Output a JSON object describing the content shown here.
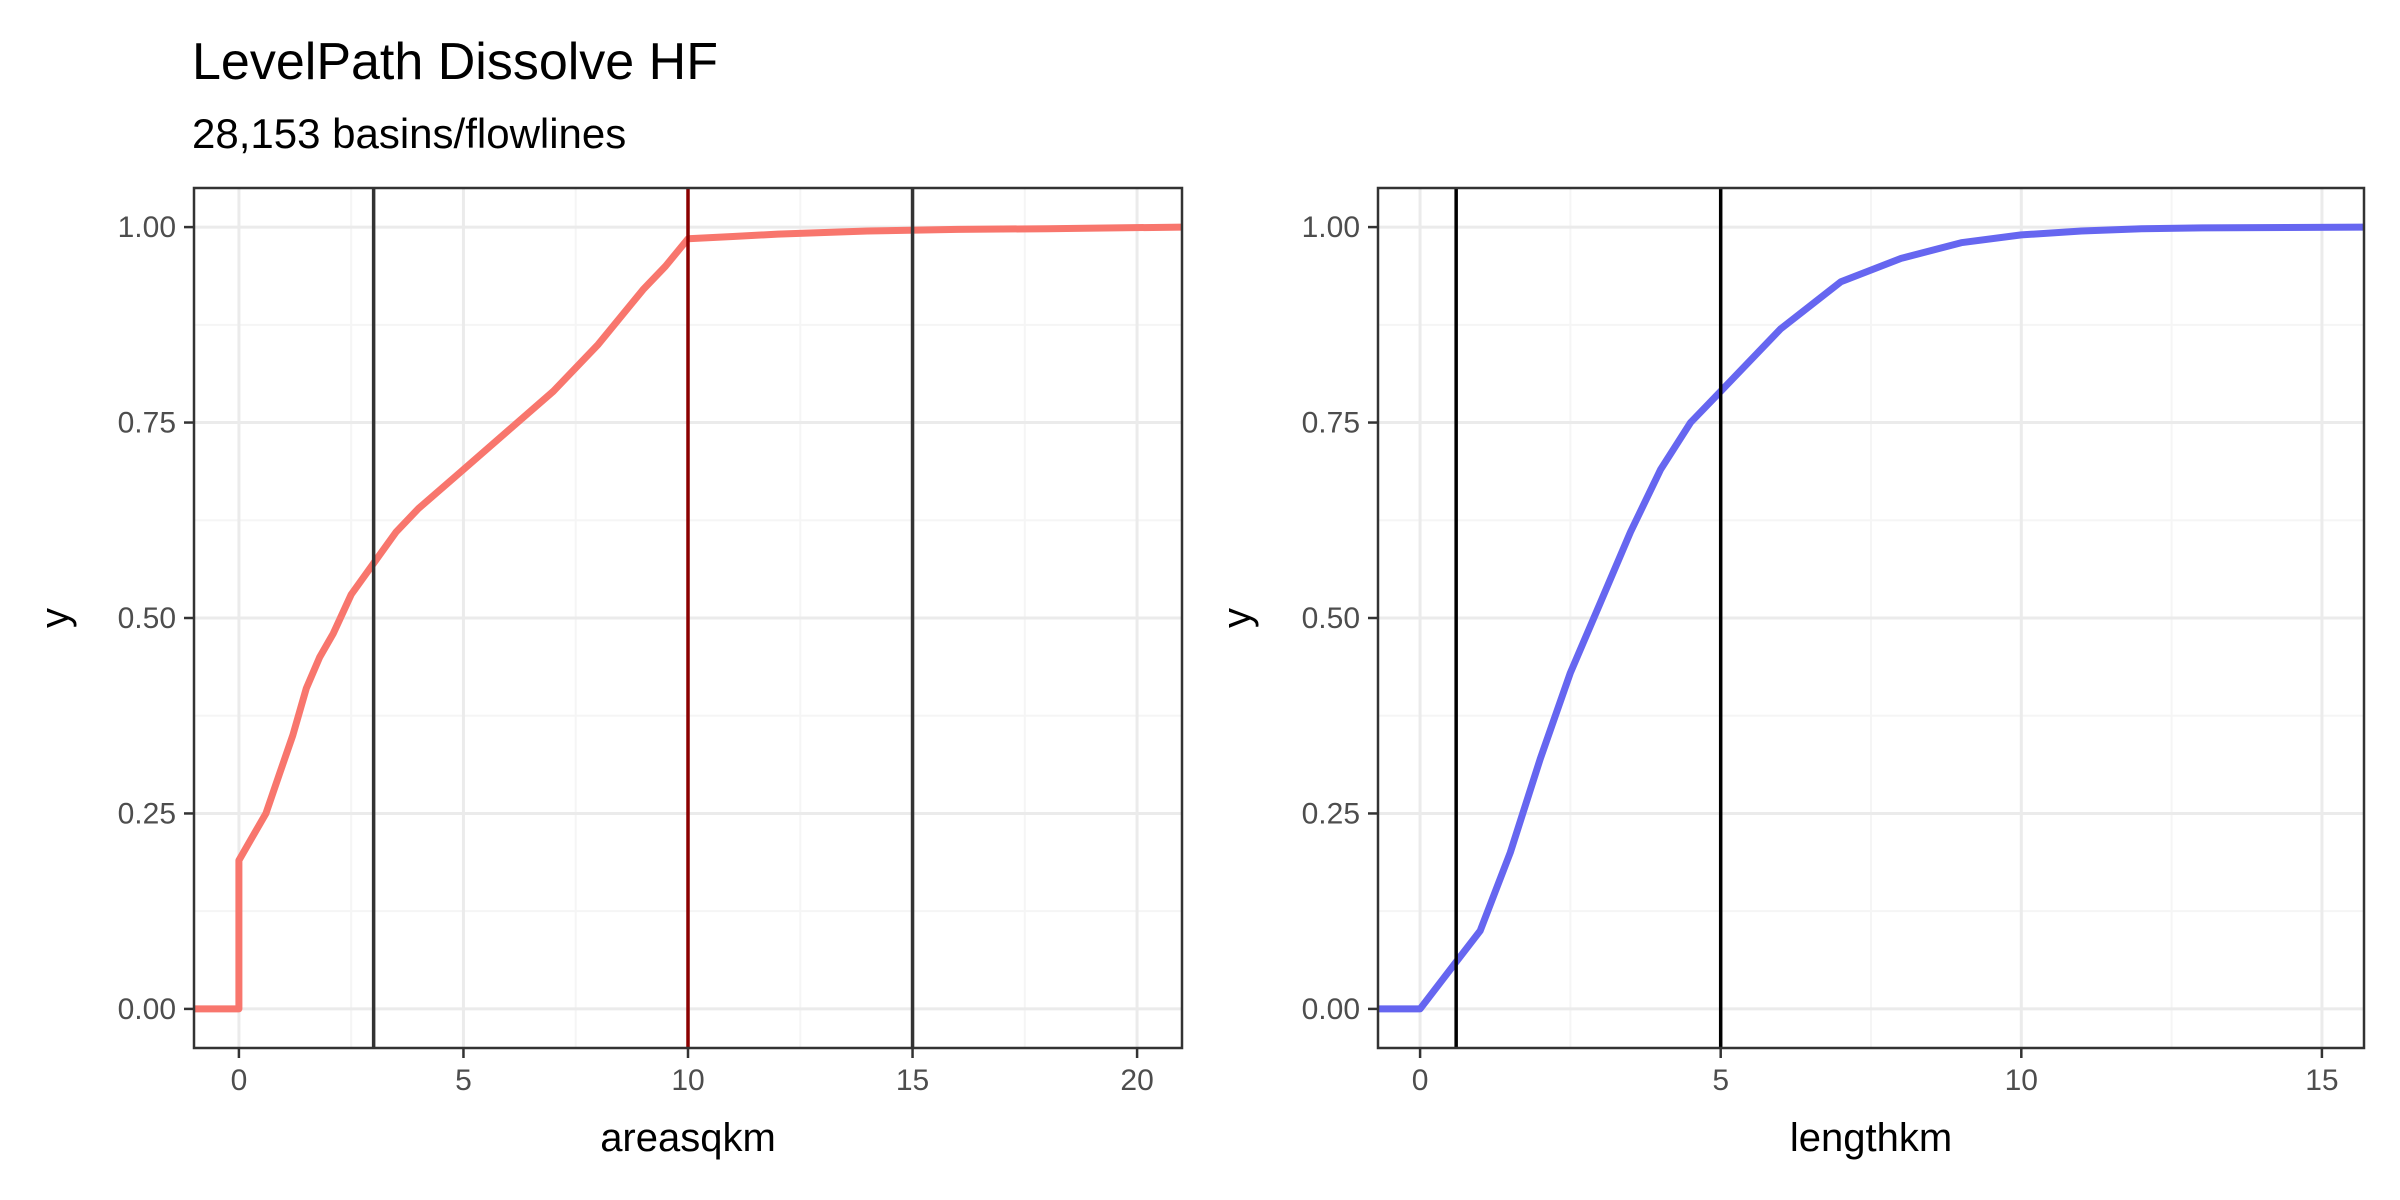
{
  "title": "LevelPath Dissolve HF",
  "subtitle": "28,153 basins/flowlines",
  "colors": {
    "area_curve": "#F8766D",
    "length_curve": "#6666F0",
    "ref_line": "#333333",
    "highlight_line": "#8B0000",
    "panel_border": "#333333",
    "grid_major": "#EBEBEB",
    "grid_minor": "#F5F5F5"
  },
  "chart_data": [
    {
      "type": "line",
      "subtype": "ecdf",
      "xlabel": "areasqkm",
      "ylabel": "y",
      "xlim": [
        -1,
        21
      ],
      "ylim": [
        -0.05,
        1.05
      ],
      "x_ticks": [
        0,
        5,
        10,
        15,
        20
      ],
      "x_tick_labels": [
        "0",
        "5",
        "10",
        "15",
        "20"
      ],
      "y_ticks": [
        0,
        0.25,
        0.5,
        0.75,
        1
      ],
      "y_tick_labels": [
        "0.00",
        "0.25",
        "0.50",
        "0.75",
        "1.00"
      ],
      "grid": true,
      "series": [
        {
          "color": "#F8766D",
          "x": [
            -1,
            0,
            0,
            0.3,
            0.6,
            0.9,
            1.2,
            1.5,
            1.8,
            2.1,
            2.5,
            3.0,
            3.5,
            4.0,
            5.0,
            6.0,
            7.0,
            8.0,
            9.0,
            9.5,
            10.0,
            11.0,
            12.0,
            14.0,
            16.0,
            18.0,
            21.0
          ],
          "y": [
            0,
            0,
            0.19,
            0.22,
            0.25,
            0.3,
            0.35,
            0.41,
            0.45,
            0.48,
            0.53,
            0.57,
            0.61,
            0.64,
            0.69,
            0.74,
            0.79,
            0.85,
            0.92,
            0.95,
            0.985,
            0.988,
            0.991,
            0.995,
            0.997,
            0.998,
            1.0
          ]
        }
      ],
      "vlines": [
        {
          "x": 3,
          "color": "#333333"
        },
        {
          "x": 10,
          "color": "#8B0000"
        },
        {
          "x": 15,
          "color": "#333333"
        }
      ]
    },
    {
      "type": "line",
      "subtype": "ecdf",
      "xlabel": "lengthkm",
      "ylabel": "y",
      "xlim": [
        -0.7,
        15.7
      ],
      "ylim": [
        -0.05,
        1.05
      ],
      "x_ticks": [
        0,
        5,
        10,
        15
      ],
      "x_tick_labels": [
        "0",
        "5",
        "10",
        "15"
      ],
      "y_ticks": [
        0,
        0.25,
        0.5,
        0.75,
        1
      ],
      "y_tick_labels": [
        "0.00",
        "0.25",
        "0.50",
        "0.75",
        "1.00"
      ],
      "grid": true,
      "series": [
        {
          "color": "#6666F0",
          "x": [
            -0.7,
            0,
            0.5,
            1.0,
            1.5,
            2.0,
            2.5,
            3.0,
            3.5,
            4.0,
            4.5,
            5.0,
            6.0,
            7.0,
            8.0,
            9.0,
            10.0,
            11.0,
            12.0,
            13.0,
            15.7
          ],
          "y": [
            0,
            0,
            0.05,
            0.1,
            0.2,
            0.32,
            0.43,
            0.52,
            0.61,
            0.69,
            0.75,
            0.79,
            0.87,
            0.93,
            0.96,
            0.98,
            0.99,
            0.995,
            0.998,
            0.999,
            1.0
          ]
        }
      ],
      "vlines": [
        {
          "x": 0.6,
          "color": "#000000"
        },
        {
          "x": 5,
          "color": "#000000"
        }
      ]
    }
  ]
}
